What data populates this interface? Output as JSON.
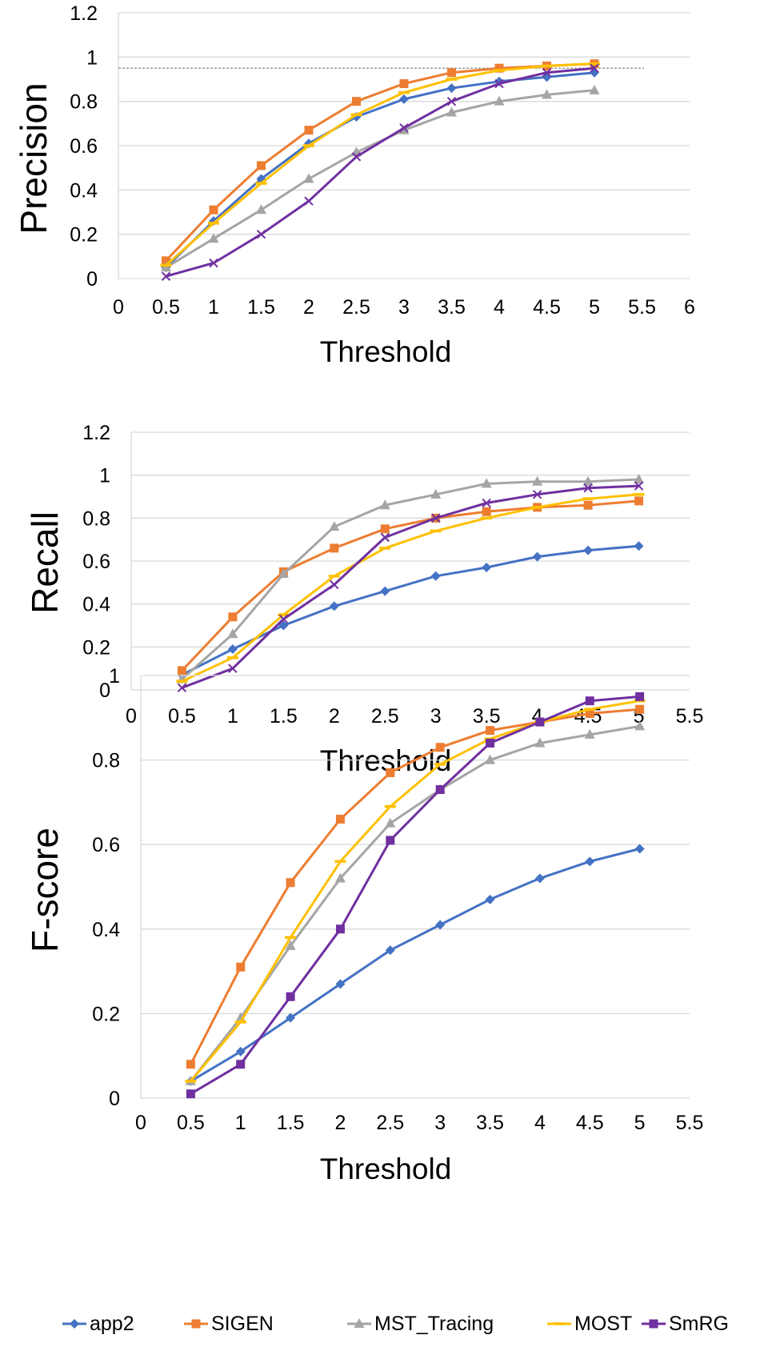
{
  "colors": {
    "app2": "#4472C4",
    "SIGEN": "#ED7D31",
    "MST_Tracing": "#A5A5A5",
    "MOST": "#FFC000",
    "SmRG": "#7030A0",
    "grid": "#d9d9d9",
    "reference_line": "#7f7f7f"
  },
  "legend": {
    "items": [
      {
        "name": "app2",
        "marker": "diamond"
      },
      {
        "name": "SIGEN",
        "marker": "square"
      },
      {
        "name": "MST_Tracing",
        "marker": "triangle"
      },
      {
        "name": "MOST",
        "marker": "dash"
      },
      {
        "name": "SmRG",
        "marker": "square"
      }
    ]
  },
  "chart_data": [
    {
      "type": "line",
      "xlabel": "Threshold",
      "ylabel": "Precision",
      "xlim": [
        0,
        6
      ],
      "ylim": [
        0,
        1.2
      ],
      "xticks": [
        "0",
        "0.5",
        "1",
        "1.5",
        "2",
        "2.5",
        "3",
        "3.5",
        "4",
        "4.5",
        "5",
        "5.5",
        "6"
      ],
      "yticks": [
        "0",
        "0.2",
        "0.4",
        "0.6",
        "0.8",
        "1",
        "1.2"
      ],
      "reference_line_y": 0.95,
      "x": [
        0.5,
        1,
        1.5,
        2,
        2.5,
        3,
        3.5,
        4,
        4.5,
        5
      ],
      "series": [
        {
          "name": "app2",
          "marker": "diamond",
          "values": [
            0.05,
            0.26,
            0.45,
            0.61,
            0.73,
            0.81,
            0.86,
            0.89,
            0.91,
            0.93
          ]
        },
        {
          "name": "SIGEN",
          "marker": "square",
          "values": [
            0.08,
            0.31,
            0.51,
            0.67,
            0.8,
            0.88,
            0.93,
            0.95,
            0.96,
            0.97
          ]
        },
        {
          "name": "MST_Tracing",
          "marker": "triangle",
          "values": [
            0.05,
            0.18,
            0.31,
            0.45,
            0.57,
            0.67,
            0.75,
            0.8,
            0.83,
            0.85
          ]
        },
        {
          "name": "MOST",
          "marker": "dash",
          "values": [
            0.06,
            0.25,
            0.43,
            0.6,
            0.74,
            0.84,
            0.9,
            0.94,
            0.96,
            0.97
          ]
        },
        {
          "name": "SmRG",
          "marker": "cross",
          "values": [
            0.01,
            0.07,
            0.2,
            0.35,
            0.55,
            0.68,
            0.8,
            0.88,
            0.93,
            0.95
          ]
        }
      ]
    },
    {
      "type": "line",
      "xlabel": "Threshold",
      "ylabel": "Recall",
      "xlim": [
        0,
        5.5
      ],
      "ylim": [
        0,
        1.2
      ],
      "xticks": [
        "0",
        "0.5",
        "1",
        "1.5",
        "2",
        "2.5",
        "3",
        "3.5",
        "4",
        "4.5",
        "5",
        "5.5"
      ],
      "yticks": [
        "0",
        "0.2",
        "0.4",
        "0.6",
        "0.8",
        "1",
        "1.2"
      ],
      "x": [
        0.5,
        1,
        1.5,
        2,
        2.5,
        3,
        3.5,
        4,
        4.5,
        5
      ],
      "series": [
        {
          "name": "app2",
          "marker": "diamond",
          "values": [
            0.07,
            0.19,
            0.3,
            0.39,
            0.46,
            0.53,
            0.57,
            0.62,
            0.65,
            0.67
          ]
        },
        {
          "name": "SIGEN",
          "marker": "square",
          "values": [
            0.09,
            0.34,
            0.55,
            0.66,
            0.75,
            0.8,
            0.83,
            0.85,
            0.86,
            0.88
          ]
        },
        {
          "name": "MST_Tracing",
          "marker": "triangle",
          "values": [
            0.05,
            0.26,
            0.54,
            0.76,
            0.86,
            0.91,
            0.96,
            0.97,
            0.97,
            0.98
          ]
        },
        {
          "name": "MOST",
          "marker": "dash",
          "values": [
            0.04,
            0.15,
            0.35,
            0.53,
            0.66,
            0.74,
            0.8,
            0.85,
            0.89,
            0.91
          ]
        },
        {
          "name": "SmRG",
          "marker": "cross",
          "values": [
            0.01,
            0.1,
            0.33,
            0.49,
            0.71,
            0.8,
            0.87,
            0.91,
            0.94,
            0.95
          ]
        }
      ]
    },
    {
      "type": "line",
      "xlabel": "Threshold",
      "ylabel": "F-score",
      "xlim": [
        0,
        5.5
      ],
      "ylim": [
        0,
        1
      ],
      "xticks": [
        "0",
        "0.5",
        "1",
        "1.5",
        "2",
        "2.5",
        "3",
        "3.5",
        "4",
        "4.5",
        "5",
        "5.5"
      ],
      "yticks": [
        "0",
        "0.2",
        "0.4",
        "0.6",
        "0.8",
        "1"
      ],
      "x": [
        0.5,
        1,
        1.5,
        2,
        2.5,
        3,
        3.5,
        4,
        4.5,
        5
      ],
      "series": [
        {
          "name": "app2",
          "marker": "diamond",
          "values": [
            0.04,
            0.11,
            0.19,
            0.27,
            0.35,
            0.41,
            0.47,
            0.52,
            0.56,
            0.59
          ]
        },
        {
          "name": "SIGEN",
          "marker": "square",
          "values": [
            0.08,
            0.31,
            0.51,
            0.66,
            0.77,
            0.83,
            0.87,
            0.89,
            0.91,
            0.92
          ]
        },
        {
          "name": "MST_Tracing",
          "marker": "triangle",
          "values": [
            0.04,
            0.19,
            0.36,
            0.52,
            0.65,
            0.73,
            0.8,
            0.84,
            0.86,
            0.88
          ]
        },
        {
          "name": "MOST",
          "marker": "dash",
          "values": [
            0.04,
            0.18,
            0.38,
            0.56,
            0.69,
            0.79,
            0.85,
            0.89,
            0.92,
            0.94
          ]
        },
        {
          "name": "SmRG",
          "marker": "square",
          "values": [
            0.01,
            0.08,
            0.24,
            0.4,
            0.61,
            0.73,
            0.84,
            0.89,
            0.94,
            0.95
          ]
        }
      ]
    }
  ]
}
